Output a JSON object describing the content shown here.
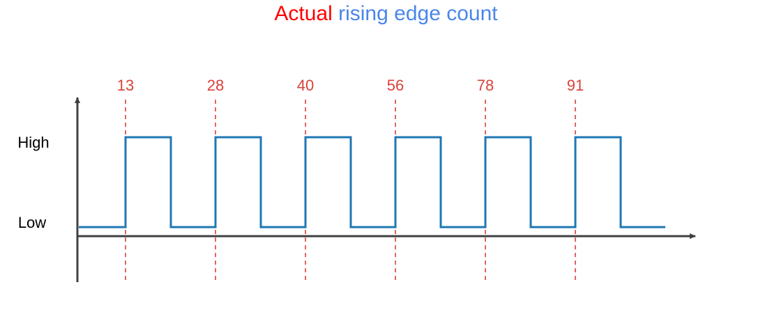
{
  "title": {
    "part1": "Actual",
    "part2": "rising edge count"
  },
  "colors": {
    "title_part1": "#ff0000",
    "title_part2": "#4a86e8",
    "signal": "#1f77b4",
    "edge_marker": "#d9413a",
    "axis": "#404040"
  },
  "y_levels": {
    "high": "High",
    "low": "Low"
  },
  "rising_edges": [
    "13",
    "28",
    "40",
    "56",
    "78",
    "91"
  ]
}
